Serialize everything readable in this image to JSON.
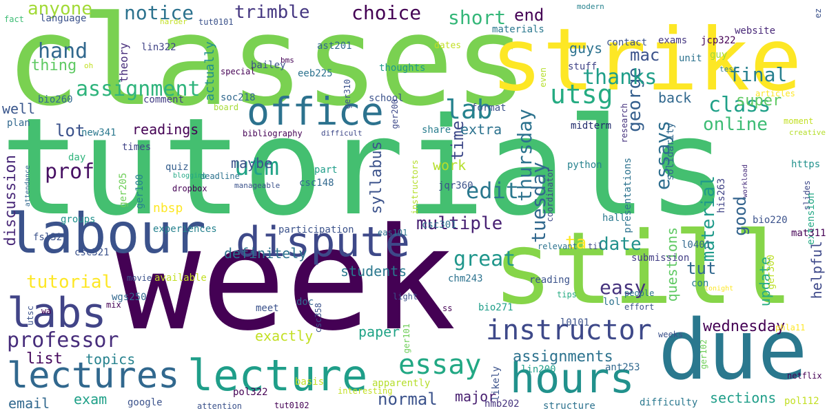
{
  "words": [
    {
      "text": "tutorials",
      "color": "#44bf70"
    },
    {
      "text": "week",
      "color": "#440154"
    },
    {
      "text": "classes",
      "color": "#7ad151"
    },
    {
      "text": "strike",
      "color": "#fde725"
    },
    {
      "text": "still",
      "color": "#86d549"
    },
    {
      "text": "due",
      "color": "#2a788e"
    },
    {
      "text": "labour",
      "color": "#3b528b"
    },
    {
      "text": "dispute",
      "color": "#3e4989"
    },
    {
      "text": "office",
      "color": "#2c728e"
    },
    {
      "text": "hours",
      "color": "#21918c"
    },
    {
      "text": "lecture",
      "color": "#1f9e89"
    },
    {
      "text": "lectures",
      "color": "#31688e"
    },
    {
      "text": "labs",
      "color": "#414487"
    },
    {
      "text": "instructor",
      "color": "#3e4989"
    },
    {
      "text": "essay",
      "color": "#22a884"
    },
    {
      "text": "assignment",
      "color": "#2fb47c"
    },
    {
      "text": "utsg",
      "color": "#25ab82"
    },
    {
      "text": "lab",
      "color": "#26828e"
    },
    {
      "text": "professor",
      "color": "#472d7b"
    },
    {
      "text": "discussion",
      "color": "#482878"
    },
    {
      "text": "prof",
      "color": "#471063"
    },
    {
      "text": "utm",
      "color": "#20a386"
    },
    {
      "text": "edit",
      "color": "#2a788e"
    },
    {
      "text": "multiple",
      "color": "#482173"
    },
    {
      "text": "great",
      "color": "#1f968b"
    },
    {
      "text": "george",
      "color": "#355f8d"
    },
    {
      "text": "thursday",
      "color": "#2c728e"
    },
    {
      "text": "tuesday",
      "color": "#31688e"
    },
    {
      "text": "essays",
      "color": "#2e6e8e"
    },
    {
      "text": "material",
      "color": "#1f9a8a"
    },
    {
      "text": "class",
      "color": "#1fa088"
    },
    {
      "text": "online",
      "color": "#3dbc74"
    },
    {
      "text": "thanks",
      "color": "#1f9e89"
    },
    {
      "text": "short",
      "color": "#35b779"
    },
    {
      "text": "choice",
      "color": "#440154"
    },
    {
      "text": "trimble",
      "color": "#453781"
    },
    {
      "text": "notice",
      "color": "#2c728e"
    },
    {
      "text": "hand",
      "color": "#31688e"
    },
    {
      "text": "anyone",
      "color": "#a2da37"
    },
    {
      "text": "thing",
      "color": "#5ec962"
    },
    {
      "text": "end",
      "color": "#440154"
    },
    {
      "text": "final",
      "color": "#277f8e"
    },
    {
      "text": "mac",
      "color": "#3b528b"
    },
    {
      "text": "guys",
      "color": "#2c728e"
    },
    {
      "text": "super",
      "color": "#5ec962"
    },
    {
      "text": "back",
      "color": "#31688e"
    },
    {
      "text": "tut",
      "color": "#31688e"
    },
    {
      "text": "good",
      "color": "#33638d"
    },
    {
      "text": "questions",
      "color": "#5ec962"
    },
    {
      "text": "update",
      "color": "#25ab82"
    },
    {
      "text": "helpful",
      "color": "#3e4989"
    },
    {
      "text": "wednesday",
      "color": "#440154"
    },
    {
      "text": "time",
      "color": "#3e4989"
    },
    {
      "text": "date",
      "color": "#21918c"
    },
    {
      "text": "easy",
      "color": "#46337e"
    },
    {
      "text": "ta",
      "color": "#fde725"
    },
    {
      "text": "maybe",
      "color": "#3b528b"
    },
    {
      "text": "syllabus",
      "color": "#3b528b"
    },
    {
      "text": "work",
      "color": "#b5de2b"
    },
    {
      "text": "extra",
      "color": "#2c728e"
    },
    {
      "text": "readings",
      "color": "#440154"
    },
    {
      "text": "lot",
      "color": "#3b528b"
    },
    {
      "text": "well",
      "color": "#39568c"
    },
    {
      "text": "tutorial",
      "color": "#fde725"
    },
    {
      "text": "definitely",
      "color": "#2c728e"
    },
    {
      "text": "students",
      "color": "#2a788e"
    },
    {
      "text": "exactly",
      "color": "#c2df23"
    },
    {
      "text": "paper",
      "color": "#20a386"
    },
    {
      "text": "list",
      "color": "#46085c"
    },
    {
      "text": "topics",
      "color": "#26828e"
    },
    {
      "text": "assignments",
      "color": "#2c728e"
    },
    {
      "text": "normal",
      "color": "#3b528b"
    },
    {
      "text": "exam",
      "color": "#1fa088"
    },
    {
      "text": "email",
      "color": "#31688e"
    },
    {
      "text": "major",
      "color": "#481f70"
    },
    {
      "text": "sections",
      "color": "#1f9e89"
    },
    {
      "text": "theory",
      "color": "#472d7b"
    },
    {
      "text": "actually",
      "color": "#21918c"
    },
    {
      "text": "comment",
      "color": "#433e85"
    },
    {
      "text": "language",
      "color": "#3b528b"
    },
    {
      "text": "exams",
      "color": "#453781"
    },
    {
      "text": "jcp322",
      "color": "#440154"
    },
    {
      "text": "website",
      "color": "#482878"
    },
    {
      "text": "contact",
      "color": "#3b528b"
    },
    {
      "text": "materials",
      "color": "#2a788e"
    },
    {
      "text": "unit",
      "color": "#2c728e"
    },
    {
      "text": "guy",
      "color": "#a0da39"
    },
    {
      "text": "stuff",
      "color": "#414487"
    },
    {
      "text": "thoughts",
      "color": "#1f9a8a"
    },
    {
      "text": "bailey",
      "color": "#3b528b"
    },
    {
      "text": "ast201",
      "color": "#31688e"
    },
    {
      "text": "lin322",
      "color": "#414487"
    },
    {
      "text": "eeb225",
      "color": "#2c728e"
    },
    {
      "text": "ger310",
      "color": "#3b528b"
    },
    {
      "text": "soc218",
      "color": "#31688e"
    },
    {
      "text": "new341",
      "color": "#2a788e"
    },
    {
      "text": "bio260",
      "color": "#31688e"
    },
    {
      "text": "school",
      "color": "#3b528b"
    },
    {
      "text": "ger200",
      "color": "#3e4989"
    },
    {
      "text": "format",
      "color": "#3b528b"
    },
    {
      "text": "share",
      "color": "#287d8e"
    },
    {
      "text": "midterm",
      "color": "#1f2a6b"
    },
    {
      "text": "research",
      "color": "#46337e"
    },
    {
      "text": "presentations",
      "color": "#2c728e"
    },
    {
      "text": "solidarity",
      "color": "#31688e"
    },
    {
      "text": "his263",
      "color": "#414487"
    },
    {
      "text": "https",
      "color": "#21918c"
    },
    {
      "text": "slides",
      "color": "#3e4989"
    },
    {
      "text": "workload",
      "color": "#472d7b"
    },
    {
      "text": "moment",
      "color": "#c2df23"
    },
    {
      "text": "extension",
      "color": "#22a884"
    },
    {
      "text": "bio220",
      "color": "#3b528b"
    },
    {
      "text": "mat311",
      "color": "#440154"
    },
    {
      "text": "python",
      "color": "#26828e"
    },
    {
      "text": "coordinator",
      "color": "#3e4989"
    },
    {
      "text": "hall",
      "color": "#2a788e"
    },
    {
      "text": "jqr360",
      "color": "#3b528b"
    },
    {
      "text": "part",
      "color": "#1f9e89"
    },
    {
      "text": "csc148",
      "color": "#31688e"
    },
    {
      "text": "quiz",
      "color": "#355f8d"
    },
    {
      "text": "deadline",
      "color": "#2c728e"
    },
    {
      "text": "manageable",
      "color": "#3b528b"
    },
    {
      "text": "ger205",
      "color": "#6ece58"
    },
    {
      "text": "ger100",
      "color": "#26828e"
    },
    {
      "text": "dropbox",
      "color": "#440154"
    },
    {
      "text": "blogging",
      "color": "#22a884"
    },
    {
      "text": "day",
      "color": "#2fb47c"
    },
    {
      "text": "groups",
      "color": "#21918c"
    },
    {
      "text": "times",
      "color": "#414487"
    },
    {
      "text": "bibliography",
      "color": "#440154"
    },
    {
      "text": "difficult",
      "color": "#3e4989"
    },
    {
      "text": "plan",
      "color": "#31688e"
    },
    {
      "text": "board",
      "color": "#a5db36"
    },
    {
      "text": "fsl321",
      "color": "#3b528b"
    },
    {
      "text": "csc321",
      "color": "#3b528b"
    },
    {
      "text": "experiences",
      "color": "#26828e"
    },
    {
      "text": "participation",
      "color": "#3b528b"
    },
    {
      "text": "eas101",
      "color": "#2c728e"
    },
    {
      "text": "instructors",
      "color": "#b5de2b"
    },
    {
      "text": "csc301",
      "color": "#2c728e"
    },
    {
      "text": "relevant",
      "color": "#2c728e"
    },
    {
      "text": "til",
      "color": "#3e4989"
    },
    {
      "text": "submission",
      "color": "#433e85"
    },
    {
      "text": "l0401",
      "color": "#31688e"
    },
    {
      "text": "con",
      "color": "#287d8e"
    },
    {
      "text": "ger300",
      "color": "#bddf26"
    },
    {
      "text": "lol",
      "color": "#2c728e"
    },
    {
      "text": "effort",
      "color": "#3b528b"
    },
    {
      "text": "tonight",
      "color": "#fde725"
    },
    {
      "text": "people",
      "color": "#2c728e"
    },
    {
      "text": "chm243",
      "color": "#2c728e"
    },
    {
      "text": "reading",
      "color": "#3b528b"
    },
    {
      "text": "tips",
      "color": "#25ab82"
    },
    {
      "text": "bio271",
      "color": "#1f9e89"
    },
    {
      "text": "l0101",
      "color": "#3b528b"
    },
    {
      "text": "available",
      "color": "#c2df23"
    },
    {
      "text": "movie",
      "color": "#3b528b"
    },
    {
      "text": "wgs250",
      "color": "#31688e"
    },
    {
      "text": "doc",
      "color": "#31688e"
    },
    {
      "text": "meet",
      "color": "#3b528b"
    },
    {
      "text": "csc358",
      "color": "#3b528b"
    },
    {
      "text": "ger101",
      "color": "#6ece58"
    },
    {
      "text": "light",
      "color": "#3b528b"
    },
    {
      "text": "ss",
      "color": "#440154"
    },
    {
      "text": "mix",
      "color": "#440154"
    },
    {
      "text": "wa",
      "color": "#440154"
    },
    {
      "text": "utsc",
      "color": "#3b528b"
    },
    {
      "text": "ger102",
      "color": "#6ece58"
    },
    {
      "text": "phla11",
      "color": "#fde725"
    },
    {
      "text": "weeks",
      "color": "#3b528b"
    },
    {
      "text": "likely",
      "color": "#3b528b"
    },
    {
      "text": "lin200",
      "color": "#1f9e89"
    },
    {
      "text": "ant253",
      "color": "#31688e"
    },
    {
      "text": "hmb202",
      "color": "#46337e"
    },
    {
      "text": "structure",
      "color": "#2c728e"
    },
    {
      "text": "difficulty",
      "color": "#2a788e"
    },
    {
      "text": "pol112",
      "color": "#c2df23"
    },
    {
      "text": "netflix",
      "color": "#440154"
    },
    {
      "text": "basis",
      "color": "#c2df23"
    },
    {
      "text": "interesting",
      "color": "#c2df23"
    },
    {
      "text": "apparently",
      "color": "#b5de2b"
    },
    {
      "text": "pol322",
      "color": "#440154"
    },
    {
      "text": "google",
      "color": "#3b528b"
    },
    {
      "text": "attention",
      "color": "#3b528b"
    },
    {
      "text": "tut0102",
      "color": "#440154"
    },
    {
      "text": "nbsp",
      "color": "#fde725"
    },
    {
      "text": "fact",
      "color": "#3dbc74"
    },
    {
      "text": "harder",
      "color": "#c2df23"
    },
    {
      "text": "tut0101",
      "color": "#3b528b"
    },
    {
      "text": "modern",
      "color": "#26828e"
    },
    {
      "text": "ez",
      "color": "#3b528b"
    },
    {
      "text": "oh",
      "color": "#c2df23"
    },
    {
      "text": "special",
      "color": "#440154"
    },
    {
      "text": "bms",
      "color": "#440154"
    },
    {
      "text": "dates",
      "color": "#c2df23"
    },
    {
      "text": "even",
      "color": "#b5de2b"
    },
    {
      "text": "test",
      "color": "#2a788e"
    },
    {
      "text": "articles",
      "color": "#fde725"
    },
    {
      "text": "creative",
      "color": "#b5de2b"
    },
    {
      "text": "attendance",
      "color": "#31688e"
    }
  ]
}
